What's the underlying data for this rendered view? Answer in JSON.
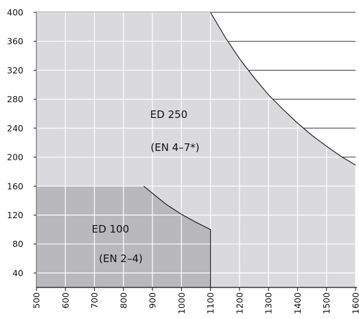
{
  "chart_data": {
    "type": "area",
    "title": "",
    "xlabel": "",
    "ylabel": "",
    "xlim": [
      500,
      1600
    ],
    "ylim": [
      20,
      400
    ],
    "x_ticks": [
      500,
      600,
      700,
      800,
      900,
      1000,
      1100,
      1200,
      1300,
      1400,
      1500,
      1600
    ],
    "x_tick_labels": [
      "500",
      "600",
      "700",
      "800",
      "900",
      "1000",
      "1100",
      "1200",
      "1300",
      "1400",
      "1500",
      "1600"
    ],
    "y_ticks": [
      40,
      80,
      120,
      160,
      200,
      240,
      280,
      320,
      360,
      400
    ],
    "y_tick_labels": [
      "40",
      "80",
      "120",
      "160",
      "200",
      "240",
      "280",
      "320",
      "360",
      "400"
    ],
    "grid": true,
    "legend": "none",
    "series": [
      {
        "color": "#dadadc",
        "boundary": [
          [
            500,
            400
          ],
          [
            1100,
            400
          ],
          [
            1150,
            366
          ],
          [
            1200,
            336
          ],
          [
            1250,
            310
          ],
          [
            1300,
            286
          ],
          [
            1350,
            266
          ],
          [
            1400,
            247
          ],
          [
            1450,
            230
          ],
          [
            1500,
            215
          ],
          [
            1550,
            201
          ],
          [
            1600,
            189
          ]
        ]
      },
      {
        "color": "#b9b9bd",
        "boundary": [
          [
            500,
            160
          ],
          [
            870,
            160
          ],
          [
            900,
            150
          ],
          [
            950,
            134
          ],
          [
            1000,
            121
          ],
          [
            1050,
            110
          ],
          [
            1100,
            100
          ]
        ]
      }
    ],
    "annotations": [
      "ED 250",
      "(EN 4–7*)",
      "ED 100",
      "(EN 2–4)"
    ]
  }
}
